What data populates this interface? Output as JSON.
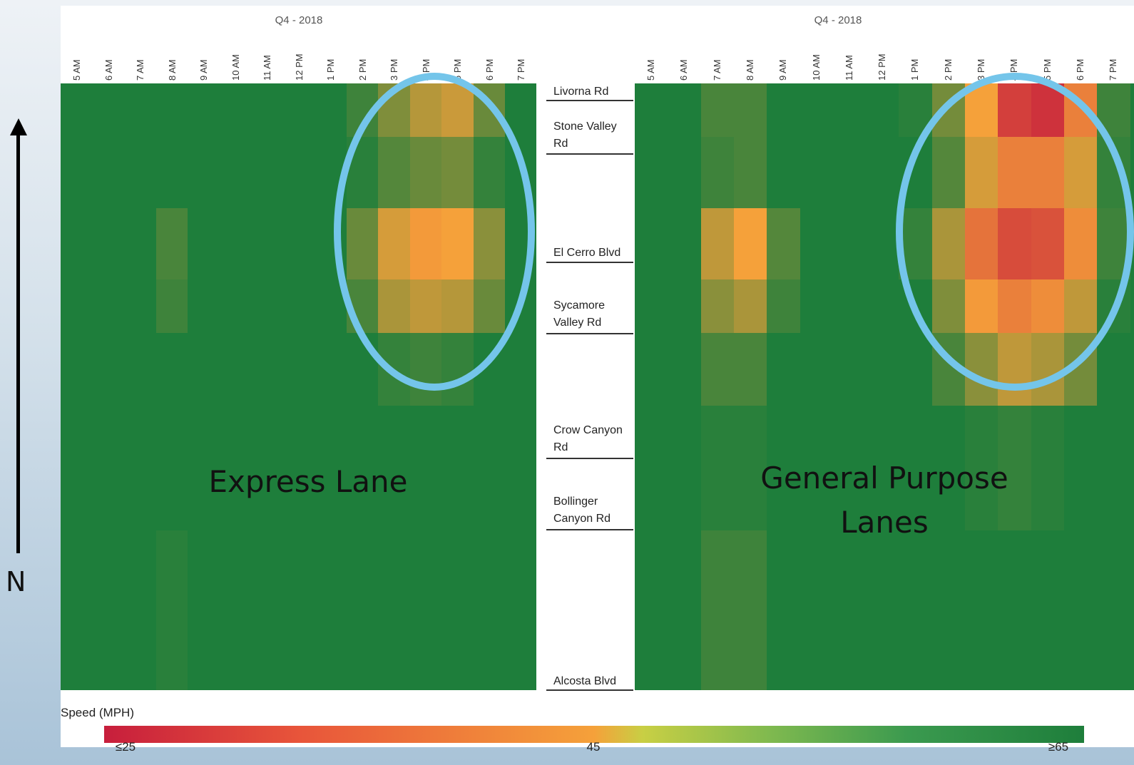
{
  "colors": {
    "low_speed": "#c71e3c",
    "mid_speed": "#f5a13a",
    "high_speed": "#1e7e3b",
    "highlight_ring": "#74c5ea"
  },
  "compass": {
    "label": "N"
  },
  "chart_data": [
    {
      "type": "heatmap",
      "title": "Q4 - 2018",
      "lane_label": "Express Lane",
      "x_label": "",
      "y_label": "",
      "x_categories": [
        "5 AM",
        "6 AM",
        "7 AM",
        "8 AM",
        "9 AM",
        "10 AM",
        "11 AM",
        "12 PM",
        "1 PM",
        "2 PM",
        "3 PM",
        "4 PM",
        "5 PM",
        "6 PM",
        "7 PM"
      ],
      "y_categories": [
        "Livorna Rd",
        "Stone Valley Rd",
        "El Cerro Blvd",
        "Sycamore Valley Rd",
        "Crow Canyon Rd",
        "Bollinger Canyon Rd",
        "Alcosta Blvd"
      ],
      "speed_mph": [
        [
          65,
          65,
          65,
          65,
          65,
          65,
          65,
          65,
          65,
          62,
          56,
          51,
          49,
          58,
          65
        ],
        [
          65,
          65,
          65,
          65,
          65,
          65,
          65,
          65,
          65,
          64,
          60,
          58,
          57,
          63,
          65
        ],
        [
          65,
          65,
          65,
          61,
          65,
          65,
          65,
          65,
          65,
          58,
          48,
          44,
          45,
          55,
          65
        ],
        [
          65,
          65,
          65,
          62,
          65,
          65,
          65,
          65,
          65,
          61,
          52,
          50,
          51,
          58,
          65
        ],
        [
          65,
          65,
          65,
          65,
          65,
          65,
          65,
          65,
          65,
          65,
          63,
          62,
          63,
          65,
          65
        ],
        [
          65,
          65,
          65,
          65,
          65,
          65,
          65,
          65,
          65,
          65,
          65,
          65,
          65,
          65,
          65
        ],
        [
          65,
          65,
          65,
          64,
          65,
          65,
          65,
          65,
          65,
          65,
          65,
          65,
          65,
          65,
          65
        ]
      ],
      "highlight_columns": [
        "2 PM",
        "6 PM"
      ]
    },
    {
      "type": "heatmap",
      "title": "Q4 - 2018",
      "lane_label": "General Purpose\nLanes",
      "x_label": "",
      "y_label": "",
      "x_categories": [
        "5 AM",
        "6 AM",
        "7 AM",
        "8 AM",
        "9 AM",
        "10 AM",
        "11 AM",
        "12 PM",
        "1 PM",
        "2 PM",
        "3 PM",
        "4 PM",
        "5 PM",
        "6 PM",
        "7 PM"
      ],
      "y_categories": [
        "Livorna Rd",
        "Stone Valley Rd",
        "El Cerro Blvd",
        "Sycamore Valley Rd",
        "Crow Canyon Rd",
        "Bollinger Canyon Rd",
        "Alcosta Blvd"
      ],
      "speed_mph": [
        [
          65,
          65,
          61,
          61,
          65,
          65,
          65,
          65,
          64,
          57,
          45,
          30,
          28,
          40,
          62
        ],
        [
          65,
          65,
          62,
          61,
          65,
          65,
          65,
          65,
          65,
          60,
          48,
          40,
          40,
          48,
          63
        ],
        [
          65,
          65,
          50,
          45,
          60,
          65,
          65,
          65,
          63,
          52,
          38,
          32,
          33,
          42,
          62
        ],
        [
          65,
          65,
          55,
          52,
          62,
          65,
          65,
          65,
          65,
          56,
          44,
          40,
          42,
          50,
          64
        ],
        [
          65,
          65,
          61,
          61,
          65,
          65,
          65,
          65,
          65,
          61,
          55,
          50,
          52,
          57,
          65
        ],
        [
          65,
          65,
          64,
          64,
          65,
          65,
          65,
          65,
          65,
          65,
          64,
          63,
          64,
          65,
          65
        ],
        [
          65,
          65,
          62,
          62,
          65,
          65,
          65,
          65,
          65,
          65,
          65,
          65,
          65,
          65,
          65
        ]
      ],
      "highlight_columns": [
        "2 PM",
        "6 PM"
      ]
    }
  ],
  "legend": {
    "title": "Speed (MPH)",
    "min_label": "≤25",
    "mid_label": "45",
    "max_label": "≥65",
    "min": 25,
    "mid": 45,
    "max": 65
  }
}
